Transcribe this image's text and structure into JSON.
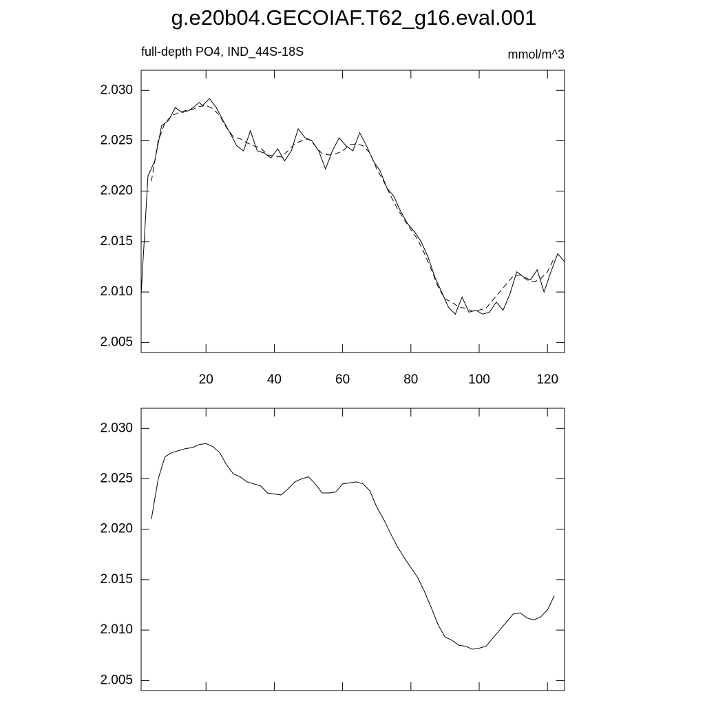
{
  "chart_data": [
    {
      "type": "line",
      "title": "g.e20b04.GECOIAF.T62_g16.eval.001",
      "subtitle_left": "full-depth PO4, IND_44S-18S",
      "subtitle_right": "mmol/m^3",
      "xlim": [
        1,
        125
      ],
      "ylim": [
        2.004,
        2.032
      ],
      "xticks": [
        20,
        40,
        60,
        80,
        100,
        120
      ],
      "yticks": [
        {
          "value": 2.005,
          "label": "2.005"
        },
        {
          "value": 2.01,
          "label": "2.010"
        },
        {
          "value": 2.015,
          "label": "2.015"
        },
        {
          "value": 2.02,
          "label": "2.020"
        },
        {
          "value": 2.025,
          "label": "2.025"
        },
        {
          "value": 2.03,
          "label": "2.030"
        }
      ],
      "series": [
        {
          "color": "#000000",
          "dash": false,
          "x": [
            1,
            3,
            5,
            7,
            9,
            11,
            13,
            15,
            17,
            18,
            19,
            21,
            23,
            25,
            27,
            29,
            31,
            33,
            35,
            37,
            39,
            41,
            43,
            45,
            47,
            49,
            51,
            53,
            55,
            57,
            59,
            61,
            63,
            65,
            67,
            69,
            71,
            73,
            75,
            77,
            79,
            81,
            83,
            85,
            87,
            89,
            91,
            93,
            95,
            97,
            99,
            101,
            103,
            105,
            107,
            109,
            111,
            113,
            115,
            117,
            119,
            121,
            123,
            125
          ],
          "values": [
            2.0098,
            2.0215,
            2.023,
            2.0265,
            2.027,
            2.0283,
            2.0278,
            2.028,
            2.0285,
            2.0288,
            2.0285,
            2.0292,
            2.0283,
            2.027,
            2.0258,
            2.0245,
            2.024,
            2.026,
            2.024,
            2.0238,
            2.0233,
            2.0242,
            2.023,
            2.024,
            2.0262,
            2.0253,
            2.025,
            2.024,
            2.0222,
            2.024,
            2.0253,
            2.0245,
            2.024,
            2.0258,
            2.0245,
            2.023,
            2.022,
            2.0203,
            2.0195,
            2.018,
            2.0168,
            2.016,
            2.015,
            2.0135,
            2.0115,
            2.01,
            2.0085,
            2.0078,
            2.0095,
            2.008,
            2.0082,
            2.0078,
            2.008,
            2.009,
            2.0082,
            2.0098,
            2.012,
            2.0115,
            2.0112,
            2.0122,
            2.01,
            2.012,
            2.0138,
            2.013
          ]
        },
        {
          "color": "#000000",
          "dash": true,
          "x": [
            4,
            6,
            8,
            10,
            12,
            14,
            16,
            18,
            20,
            22,
            24,
            26,
            28,
            30,
            32,
            34,
            36,
            38,
            40,
            42,
            44,
            46,
            48,
            50,
            52,
            54,
            56,
            58,
            60,
            62,
            64,
            66,
            68,
            70,
            72,
            74,
            76,
            78,
            80,
            82,
            84,
            86,
            88,
            90,
            92,
            94,
            96,
            98,
            100,
            102,
            104,
            106,
            108,
            110,
            112,
            114,
            116,
            118,
            120,
            122
          ],
          "values": [
            2.021,
            2.025,
            2.0268,
            2.0275,
            2.0278,
            2.028,
            2.0281,
            2.0284,
            2.0285,
            2.0282,
            2.0275,
            2.0263,
            2.0254,
            2.0252,
            2.0248,
            2.0245,
            2.0243,
            2.0236,
            2.0235,
            2.0234,
            2.024,
            2.0247,
            2.025,
            2.0252,
            2.0245,
            2.0237,
            2.0236,
            2.0237,
            2.024,
            2.0246,
            2.0247,
            2.0245,
            2.0238,
            2.0222,
            2.021,
            2.0196,
            2.0183,
            2.0172,
            2.0162,
            2.0152,
            2.0138,
            2.0122,
            2.0105,
            2.0093,
            2.009,
            2.0085,
            2.0084,
            2.0081,
            2.0082,
            2.0084,
            2.0092,
            2.01,
            2.0108,
            2.0116,
            2.0117,
            2.0112,
            2.011,
            2.0113,
            2.012,
            2.0134
          ]
        }
      ]
    },
    {
      "type": "line",
      "xlim": [
        1,
        125
      ],
      "ylim": [
        2.004,
        2.032
      ],
      "yticks": [
        {
          "value": 2.005,
          "label": "2.005"
        },
        {
          "value": 2.01,
          "label": "2.010"
        },
        {
          "value": 2.015,
          "label": "2.015"
        },
        {
          "value": 2.02,
          "label": "2.020"
        },
        {
          "value": 2.025,
          "label": "2.025"
        },
        {
          "value": 2.03,
          "label": "2.030"
        }
      ],
      "series": [
        {
          "color": "#000000",
          "dash": false,
          "x": [
            4,
            6,
            8,
            10,
            12,
            14,
            16,
            18,
            20,
            22,
            24,
            26,
            28,
            30,
            32,
            34,
            36,
            38,
            40,
            42,
            44,
            46,
            48,
            50,
            52,
            54,
            56,
            58,
            60,
            62,
            64,
            66,
            68,
            70,
            72,
            74,
            76,
            78,
            80,
            82,
            84,
            86,
            88,
            90,
            92,
            94,
            96,
            98,
            100,
            102,
            104,
            106,
            108,
            110,
            112,
            114,
            116,
            118,
            120,
            122
          ],
          "values": [
            2.021,
            2.025,
            2.0272,
            2.0276,
            2.0278,
            2.028,
            2.0281,
            2.0284,
            2.0285,
            2.0282,
            2.0276,
            2.0264,
            2.0255,
            2.0252,
            2.0247,
            2.0245,
            2.0243,
            2.0236,
            2.0235,
            2.0234,
            2.024,
            2.0247,
            2.025,
            2.0252,
            2.0245,
            2.0236,
            2.0236,
            2.0237,
            2.0245,
            2.0246,
            2.0247,
            2.0245,
            2.0238,
            2.0222,
            2.021,
            2.0196,
            2.0183,
            2.0172,
            2.0162,
            2.0152,
            2.0138,
            2.0122,
            2.0105,
            2.0093,
            2.009,
            2.0085,
            2.0084,
            2.0081,
            2.0082,
            2.0084,
            2.0092,
            2.01,
            2.0108,
            2.0116,
            2.0117,
            2.0112,
            2.011,
            2.0113,
            2.012,
            2.0134
          ]
        }
      ]
    }
  ]
}
